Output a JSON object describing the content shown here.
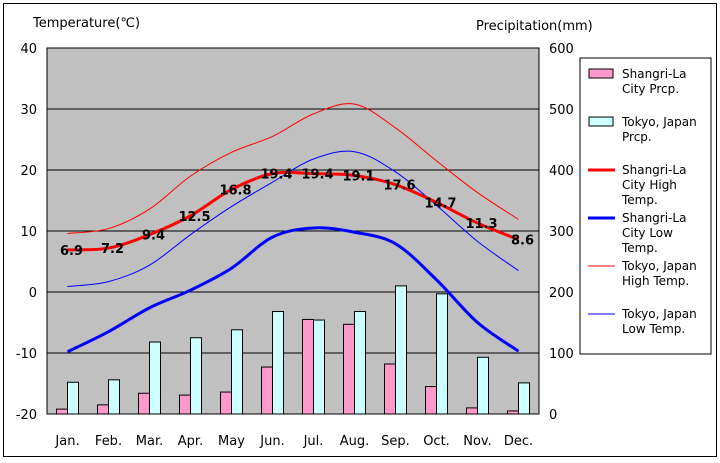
{
  "chart_data": {
    "type": "bar+line",
    "categories": [
      "Jan.",
      "Feb.",
      "Mar.",
      "Apr.",
      "May",
      "Jun.",
      "Jul.",
      "Aug.",
      "Sep.",
      "Oct.",
      "Nov.",
      "Dec."
    ],
    "left_axis": {
      "title": "Temperature(℃)",
      "range": [
        -20,
        40
      ],
      "ticks": [
        40,
        30,
        20,
        10,
        0,
        -10,
        -20
      ]
    },
    "right_axis": {
      "title": "Precipitation(mm)",
      "range": [
        0,
        600
      ],
      "ticks": [
        600,
        500,
        400,
        300,
        200,
        100,
        0
      ]
    },
    "grid": true,
    "legend_position": "right",
    "series": [
      {
        "name": "Shangri-La City Prcp.",
        "kind": "bar",
        "axis": "right",
        "color": "#ff99cc",
        "values": [
          8,
          15,
          34,
          31,
          36,
          77,
          155,
          147,
          82,
          45,
          10,
          5
        ]
      },
      {
        "name": "Tokyo, Japan Prcp.",
        "kind": "bar",
        "axis": "right",
        "color": "#ccffff",
        "values": [
          52,
          56,
          118,
          125,
          138,
          168,
          154,
          168,
          210,
          197,
          93,
          51
        ]
      },
      {
        "name": "Shangri-La City High Temp.",
        "kind": "line",
        "axis": "left",
        "color": "#ff0000",
        "width": 3,
        "values": [
          6.9,
          7.2,
          9.4,
          12.5,
          16.8,
          19.4,
          19.4,
          19.1,
          17.6,
          14.7,
          11.3,
          8.6
        ],
        "labels": [
          "6.9",
          "7.2",
          "9.4",
          "12.5",
          "16.8",
          "19.4",
          "19.4",
          "19.1",
          "17.6",
          "14.7",
          "11.3",
          "8.6"
        ]
      },
      {
        "name": "Shangri-La City Low Temp.",
        "kind": "line",
        "axis": "left",
        "color": "#0000ff",
        "width": 3,
        "values": [
          -9.8,
          -6.5,
          -2.6,
          0.3,
          3.9,
          9.0,
          10.5,
          9.8,
          7.9,
          2.0,
          -5.0,
          -9.7
        ]
      },
      {
        "name": "Tokyo, Japan High Temp.",
        "kind": "line",
        "axis": "left",
        "color": "#ff0000",
        "width": 1,
        "values": [
          9.6,
          10.4,
          13.6,
          19.0,
          22.9,
          25.5,
          29.2,
          30.8,
          26.9,
          21.5,
          16.3,
          11.9
        ]
      },
      {
        "name": "Tokyo, Japan Low Temp.",
        "kind": "line",
        "axis": "left",
        "color": "#0000ff",
        "width": 1,
        "values": [
          0.9,
          1.7,
          4.4,
          9.4,
          14.0,
          18.0,
          21.8,
          23.0,
          19.7,
          14.2,
          8.3,
          3.5
        ]
      }
    ],
    "legend": [
      {
        "label": [
          "Shangri-La",
          "City Prcp."
        ],
        "marker": "bar",
        "color": "#ff99cc"
      },
      {
        "label": [
          "Tokyo, Japan",
          "Prcp."
        ],
        "marker": "bar",
        "color": "#ccffff"
      },
      {
        "label": [
          "Shangri-La",
          "City High",
          "Temp."
        ],
        "marker": "line",
        "color": "#ff0000",
        "width": 3
      },
      {
        "label": [
          "Shangri-La",
          "City Low",
          "Temp."
        ],
        "marker": "line",
        "color": "#0000ff",
        "width": 3
      },
      {
        "label": [
          "Tokyo, Japan",
          "High Temp."
        ],
        "marker": "line",
        "color": "#ff0000",
        "width": 1
      },
      {
        "label": [
          "Tokyo, Japan",
          "Low Temp."
        ],
        "marker": "line",
        "color": "#0000ff",
        "width": 1
      }
    ]
  }
}
